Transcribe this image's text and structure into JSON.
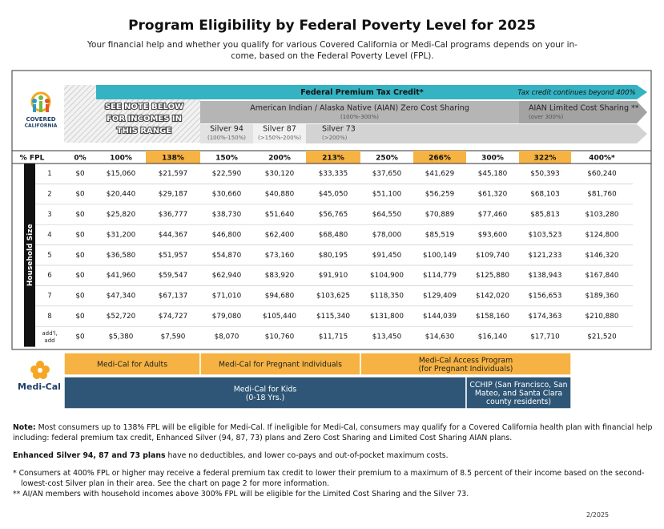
{
  "header": {
    "title": "Program Eligibility by Federal Poverty Level for 2025",
    "subtitle": [
      "Your financial help and whether you qualify for various Covered California or Medi-Cal programs depends on your in-",
      "come, based on the Federal Poverty Level (FPL)."
    ]
  },
  "logos": {
    "covered_california": [
      "COVERED",
      "CALIFORNIA"
    ],
    "medi_cal": "Medi-Cal"
  },
  "coverage": {
    "tax_credit": "Federal Premium Tax Credit*",
    "tax_credit_beyond": "Tax credit continues beyond 400%",
    "see_note": [
      "SEE NOTE BELOW",
      "FOR INCOMES IN",
      "THIS RANGE"
    ],
    "aian_zero": {
      "label": "American Indian / Alaska Native (AIAN) Zero Cost Sharing",
      "range": "(100%-300%)"
    },
    "aian_limited": {
      "label": "AIAN Limited Cost Sharing **",
      "range": "(over 300%)"
    },
    "silver_94": {
      "label": "Silver 94",
      "range": "(100%-150%)"
    },
    "silver_87": {
      "label": "Silver 87",
      "range": "(>150%-200%)"
    },
    "silver_73": {
      "label": "Silver 73",
      "range": "(>200%)"
    }
  },
  "table": {
    "side_label": "Household Size",
    "header": [
      "% FPL",
      "0%",
      "100%",
      "138%",
      "150%",
      "200%",
      "213%",
      "250%",
      "266%",
      "300%",
      "322%",
      "400%*"
    ],
    "rows": [
      [
        "1",
        "$0",
        "$15,060",
        "$21,597",
        "$22,590",
        "$30,120",
        "$33,335",
        "$37,650",
        "$41,629",
        "$45,180",
        "$50,393",
        "$60,240"
      ],
      [
        "2",
        "$0",
        "$20,440",
        "$29,187",
        "$30,660",
        "$40,880",
        "$45,050",
        "$51,100",
        "$56,259",
        "$61,320",
        "$68,103",
        "$81,760"
      ],
      [
        "3",
        "$0",
        "$25,820",
        "$36,777",
        "$38,730",
        "$51,640",
        "$56,765",
        "$64,550",
        "$70,889",
        "$77,460",
        "$85,813",
        "$103,280"
      ],
      [
        "4",
        "$0",
        "$31,200",
        "$44,367",
        "$46,800",
        "$62,400",
        "$68,480",
        "$78,000",
        "$85,519",
        "$93,600",
        "$103,523",
        "$124,800"
      ],
      [
        "5",
        "$0",
        "$36,580",
        "$51,957",
        "$54,870",
        "$73,160",
        "$80,195",
        "$91,450",
        "$100,149",
        "$109,740",
        "$121,233",
        "$146,320"
      ],
      [
        "6",
        "$0",
        "$41,960",
        "$59,547",
        "$62,940",
        "$83,920",
        "$91,910",
        "$104,900",
        "$114,779",
        "$125,880",
        "$138,943",
        "$167,840"
      ],
      [
        "7",
        "$0",
        "$47,340",
        "$67,137",
        "$71,010",
        "$94,680",
        "$103,625",
        "$118,350",
        "$129,409",
        "$142,020",
        "$156,653",
        "$189,360"
      ],
      [
        "8",
        "$0",
        "$52,720",
        "$74,727",
        "$79,080",
        "$105,440",
        "$115,340",
        "$131,800",
        "$144,039",
        "$158,160",
        "$174,363",
        "$210,880"
      ],
      [
        "add'l, add",
        "$0",
        "$5,380",
        "$7,590",
        "$8,070",
        "$10,760",
        "$11,715",
        "$13,450",
        "$14,630",
        "$16,140",
        "$17,710",
        "$21,520"
      ]
    ]
  },
  "programs": {
    "adults": [
      "Medi-Cal for Adults"
    ],
    "pregnant": [
      "Medi-Cal for Pregnant Individuals"
    ],
    "access": [
      "Medi-Cal Access Program",
      "(for Pregnant Individuals)"
    ],
    "kids": [
      "Medi-Cal for Kids",
      "(0-18 Yrs.)"
    ],
    "cchip": [
      "CCHIP (San Francisco, San",
      "Mateo, and Santa Clara",
      "county residents)"
    ]
  },
  "notes": {
    "note": {
      "label": "Note:",
      "text": "Most consumers up to 138% FPL will be eligible for Medi-Cal. If ineligible for Medi-Cal, consumers may qualify for a Covered California health plan with financial help including: federal premium tax credit, Enhanced Silver (94, 87, 73) plans and Zero Cost Sharing and Limited Cost Sharing AIAN plans."
    },
    "enhanced": {
      "label": "Enhanced Silver 94, 87 and 73 plans",
      "text": "have no deductibles, and lower co-pays and out-of-pocket maximum costs."
    },
    "footnotes": [
      "* Consumers at 400% FPL or higher may receive a federal premium tax credit to lower their premium to a maximum of 8.5 percent of their income based on the second-lowest-cost Silver plan in their area. See the chart on page 2 for more information.",
      "** AI/AN members with household incomes above 300% FPL will be eligible for the Limited Cost Sharing and the Silver 73."
    ]
  },
  "date": "2/2025"
}
